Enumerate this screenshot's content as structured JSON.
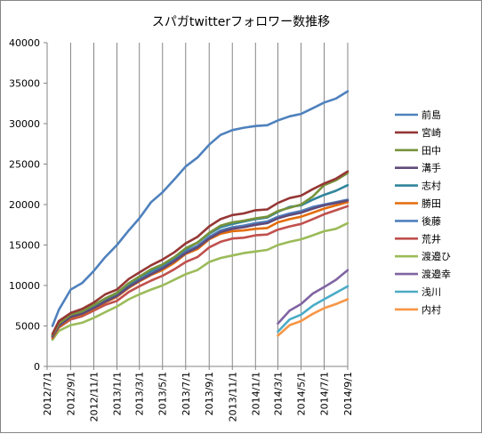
{
  "chart_data": {
    "type": "line",
    "title": "スパガtwitterフォロワー数推移",
    "xlabel": "",
    "ylabel": "",
    "ylim": [
      0,
      40000
    ],
    "yticks": [
      "0",
      "5000",
      "10000",
      "15000",
      "20000",
      "25000",
      "30000",
      "35000",
      "40000"
    ],
    "x_tick_labels": [
      "2012/7/1",
      "2012/9/1",
      "2012/11/1",
      "2013/1/1",
      "2013/3/1",
      "2013/5/1",
      "2013/7/1",
      "2013/9/1",
      "2013/11/1",
      "2014/1/1",
      "2014/3/1",
      "2014/5/1",
      "2014/7/1",
      "2014/9/1"
    ],
    "grid": "vertical",
    "legend_position": "right",
    "series": [
      {
        "name": "前島",
        "color": "#4f81bd",
        "points": [
          [
            "2012/7/15",
            5000
          ],
          [
            "2012/8/1",
            7000
          ],
          [
            "2012/9/1",
            9500
          ],
          [
            "2012/10/1",
            10300
          ],
          [
            "2012/11/1",
            11800
          ],
          [
            "2012/12/1",
            13500
          ],
          [
            "2013/1/1",
            15000
          ],
          [
            "2013/2/1",
            16800
          ],
          [
            "2013/3/1",
            18300
          ],
          [
            "2013/4/1",
            20300
          ],
          [
            "2013/5/1",
            21500
          ],
          [
            "2013/6/1",
            23100
          ],
          [
            "2013/7/1",
            24700
          ],
          [
            "2013/8/1",
            25800
          ],
          [
            "2013/9/1",
            27400
          ],
          [
            "2013/10/1",
            28600
          ],
          [
            "2013/11/1",
            29200
          ],
          [
            "2013/12/1",
            29500
          ],
          [
            "2014/1/1",
            29700
          ],
          [
            "2014/2/1",
            29800
          ],
          [
            "2014/3/1",
            30400
          ],
          [
            "2014/4/1",
            30900
          ],
          [
            "2014/5/1",
            31200
          ],
          [
            "2014/6/1",
            31900
          ],
          [
            "2014/7/1",
            32600
          ],
          [
            "2014/8/1",
            33100
          ],
          [
            "2014/9/1",
            34000
          ]
        ]
      },
      {
        "name": "宮崎",
        "color": "#953735",
        "points": [
          [
            "2012/7/15",
            4000
          ],
          [
            "2012/8/1",
            5600
          ],
          [
            "2012/9/1",
            6600
          ],
          [
            "2012/10/1",
            7100
          ],
          [
            "2012/11/1",
            7900
          ],
          [
            "2012/12/1",
            8900
          ],
          [
            "2013/1/1",
            9500
          ],
          [
            "2013/2/1",
            10800
          ],
          [
            "2013/3/1",
            11600
          ],
          [
            "2013/4/1",
            12500
          ],
          [
            "2013/5/1",
            13200
          ],
          [
            "2013/6/1",
            14100
          ],
          [
            "2013/7/1",
            15200
          ],
          [
            "2013/8/1",
            16000
          ],
          [
            "2013/9/1",
            17300
          ],
          [
            "2013/10/1",
            18200
          ],
          [
            "2013/11/1",
            18700
          ],
          [
            "2013/12/1",
            18900
          ],
          [
            "2014/1/1",
            19300
          ],
          [
            "2014/2/1",
            19400
          ],
          [
            "2014/3/1",
            20200
          ],
          [
            "2014/4/1",
            20800
          ],
          [
            "2014/5/1",
            21100
          ],
          [
            "2014/6/1",
            21900
          ],
          [
            "2014/7/1",
            22600
          ],
          [
            "2014/8/1",
            23200
          ],
          [
            "2014/9/1",
            24100
          ]
        ]
      },
      {
        "name": "田中",
        "color": "#77933c",
        "points": [
          [
            "2012/7/15",
            3900
          ],
          [
            "2012/8/1",
            5300
          ],
          [
            "2012/9/1",
            6400
          ],
          [
            "2012/10/1",
            6800
          ],
          [
            "2012/11/1",
            7600
          ],
          [
            "2012/12/1",
            8400
          ],
          [
            "2013/1/1",
            9100
          ],
          [
            "2013/2/1",
            10300
          ],
          [
            "2013/3/1",
            11100
          ],
          [
            "2013/4/1",
            12000
          ],
          [
            "2013/5/1",
            12600
          ],
          [
            "2013/6/1",
            13500
          ],
          [
            "2013/7/1",
            14600
          ],
          [
            "2013/8/1",
            15300
          ],
          [
            "2013/9/1",
            16500
          ],
          [
            "2013/10/1",
            17400
          ],
          [
            "2013/11/1",
            17800
          ],
          [
            "2013/12/1",
            18000
          ],
          [
            "2014/1/1",
            18300
          ],
          [
            "2014/2/1",
            18500
          ],
          [
            "2014/3/1",
            19200
          ],
          [
            "2014/4/1",
            19600
          ],
          [
            "2014/5/1",
            20000
          ],
          [
            "2014/6/1",
            21000
          ],
          [
            "2014/7/1",
            22400
          ],
          [
            "2014/8/1",
            23000
          ],
          [
            "2014/9/1",
            23900
          ]
        ]
      },
      {
        "name": "溝手",
        "color": "#604a7b",
        "points": [
          [
            "2012/7/15",
            3700
          ],
          [
            "2012/8/1",
            5000
          ],
          [
            "2012/9/1",
            6100
          ],
          [
            "2012/10/1",
            6500
          ],
          [
            "2012/11/1",
            7200
          ],
          [
            "2012/12/1",
            8000
          ],
          [
            "2013/1/1",
            8700
          ],
          [
            "2013/2/1",
            9800
          ],
          [
            "2013/3/1",
            10600
          ],
          [
            "2013/4/1",
            11400
          ],
          [
            "2013/5/1",
            12100
          ],
          [
            "2013/6/1",
            13000
          ],
          [
            "2013/7/1",
            14000
          ],
          [
            "2013/8/1",
            14700
          ],
          [
            "2013/9/1",
            15800
          ],
          [
            "2013/10/1",
            16600
          ],
          [
            "2013/11/1",
            17000
          ],
          [
            "2013/12/1",
            17200
          ],
          [
            "2014/1/1",
            17500
          ],
          [
            "2014/2/1",
            17700
          ],
          [
            "2014/3/1",
            18300
          ],
          [
            "2014/4/1",
            18700
          ],
          [
            "2014/5/1",
            19000
          ],
          [
            "2014/6/1",
            19500
          ],
          [
            "2014/7/1",
            19900
          ],
          [
            "2014/8/1",
            20200
          ],
          [
            "2014/9/1",
            20500
          ]
        ]
      },
      {
        "name": "志村",
        "color": "#31859c",
        "points": [
          [
            "2012/7/15",
            3800
          ],
          [
            "2012/8/1",
            5200
          ],
          [
            "2012/9/1",
            6300
          ],
          [
            "2012/10/1",
            6700
          ],
          [
            "2012/11/1",
            7500
          ],
          [
            "2012/12/1",
            8300
          ],
          [
            "2013/1/1",
            9000
          ],
          [
            "2013/2/1",
            10100
          ],
          [
            "2013/3/1",
            11000
          ],
          [
            "2013/4/1",
            11800
          ],
          [
            "2013/5/1",
            12500
          ],
          [
            "2013/6/1",
            13400
          ],
          [
            "2013/7/1",
            14500
          ],
          [
            "2013/8/1",
            15300
          ],
          [
            "2013/9/1",
            16400
          ],
          [
            "2013/10/1",
            17200
          ],
          [
            "2013/11/1",
            17600
          ],
          [
            "2013/12/1",
            17900
          ],
          [
            "2014/1/1",
            18200
          ],
          [
            "2014/2/1",
            18400
          ],
          [
            "2014/3/1",
            19100
          ],
          [
            "2014/4/1",
            19700
          ],
          [
            "2014/5/1",
            19900
          ],
          [
            "2014/6/1",
            20600
          ],
          [
            "2014/7/1",
            21200
          ],
          [
            "2014/8/1",
            21700
          ],
          [
            "2014/9/1",
            22400
          ]
        ]
      },
      {
        "name": "勝田",
        "color": "#e46c0a",
        "points": [
          [
            "2012/7/15",
            3600
          ],
          [
            "2012/8/1",
            4900
          ],
          [
            "2012/9/1",
            6000
          ],
          [
            "2012/10/1",
            6400
          ],
          [
            "2012/11/1",
            7100
          ],
          [
            "2012/12/1",
            7900
          ],
          [
            "2013/1/1",
            8600
          ],
          [
            "2013/2/1",
            9700
          ],
          [
            "2013/3/1",
            10500
          ],
          [
            "2013/4/1",
            11300
          ],
          [
            "2013/5/1",
            11900
          ],
          [
            "2013/6/1",
            12800
          ],
          [
            "2013/7/1",
            13900
          ],
          [
            "2013/8/1",
            14500
          ],
          [
            "2013/9/1",
            15700
          ],
          [
            "2013/10/1",
            16400
          ],
          [
            "2013/11/1",
            16700
          ],
          [
            "2013/12/1",
            16800
          ],
          [
            "2014/1/1",
            17000
          ],
          [
            "2014/2/1",
            17100
          ],
          [
            "2014/3/1",
            17800
          ],
          [
            "2014/4/1",
            18200
          ],
          [
            "2014/5/1",
            18500
          ],
          [
            "2014/6/1",
            19000
          ],
          [
            "2014/7/1",
            19500
          ],
          [
            "2014/8/1",
            19900
          ],
          [
            "2014/9/1",
            20300
          ]
        ]
      },
      {
        "name": "後藤",
        "color": "#4f81bd",
        "points": [
          [
            "2012/7/15",
            3750
          ],
          [
            "2012/8/1",
            5100
          ],
          [
            "2012/9/1",
            6200
          ],
          [
            "2012/10/1",
            6600
          ],
          [
            "2012/11/1",
            7300
          ],
          [
            "2012/12/1",
            8100
          ],
          [
            "2013/1/1",
            8800
          ],
          [
            "2013/2/1",
            9900
          ],
          [
            "2013/3/1",
            10700
          ],
          [
            "2013/4/1",
            11500
          ],
          [
            "2013/5/1",
            12200
          ],
          [
            "2013/6/1",
            13100
          ],
          [
            "2013/7/1",
            14200
          ],
          [
            "2013/8/1",
            14900
          ],
          [
            "2013/9/1",
            16000
          ],
          [
            "2013/10/1",
            16800
          ],
          [
            "2013/11/1",
            17200
          ],
          [
            "2013/12/1",
            17400
          ],
          [
            "2014/1/1",
            17700
          ],
          [
            "2014/2/1",
            17900
          ],
          [
            "2014/3/1",
            18500
          ],
          [
            "2014/4/1",
            18900
          ],
          [
            "2014/5/1",
            19200
          ],
          [
            "2014/6/1",
            19700
          ],
          [
            "2014/7/1",
            20000
          ],
          [
            "2014/8/1",
            20300
          ],
          [
            "2014/9/1",
            20600
          ]
        ]
      },
      {
        "name": "荒井",
        "color": "#c0504d",
        "points": [
          [
            "2012/7/15",
            3500
          ],
          [
            "2012/8/1",
            4800
          ],
          [
            "2012/9/1",
            5800
          ],
          [
            "2012/10/1",
            6200
          ],
          [
            "2012/11/1",
            6900
          ],
          [
            "2012/12/1",
            7600
          ],
          [
            "2013/1/1",
            8100
          ],
          [
            "2013/2/1",
            9200
          ],
          [
            "2013/3/1",
            9900
          ],
          [
            "2013/4/1",
            10600
          ],
          [
            "2013/5/1",
            11200
          ],
          [
            "2013/6/1",
            12000
          ],
          [
            "2013/7/1",
            12900
          ],
          [
            "2013/8/1",
            13500
          ],
          [
            "2013/9/1",
            14700
          ],
          [
            "2013/10/1",
            15400
          ],
          [
            "2013/11/1",
            15800
          ],
          [
            "2013/12/1",
            15900
          ],
          [
            "2014/1/1",
            16200
          ],
          [
            "2014/2/1",
            16300
          ],
          [
            "2014/3/1",
            16900
          ],
          [
            "2014/4/1",
            17300
          ],
          [
            "2014/5/1",
            17600
          ],
          [
            "2014/6/1",
            18200
          ],
          [
            "2014/7/1",
            18800
          ],
          [
            "2014/8/1",
            19300
          ],
          [
            "2014/9/1",
            19800
          ]
        ]
      },
      {
        "name": "渡邉ひ",
        "color": "#9bbb59",
        "points": [
          [
            "2012/7/15",
            3300
          ],
          [
            "2012/8/1",
            4400
          ],
          [
            "2012/9/1",
            5100
          ],
          [
            "2012/10/1",
            5400
          ],
          [
            "2012/11/1",
            6000
          ],
          [
            "2012/12/1",
            6700
          ],
          [
            "2013/1/1",
            7400
          ],
          [
            "2013/2/1",
            8300
          ],
          [
            "2013/3/1",
            8900
          ],
          [
            "2013/4/1",
            9500
          ],
          [
            "2013/5/1",
            10000
          ],
          [
            "2013/6/1",
            10700
          ],
          [
            "2013/7/1",
            11400
          ],
          [
            "2013/8/1",
            11900
          ],
          [
            "2013/9/1",
            12900
          ],
          [
            "2013/10/1",
            13400
          ],
          [
            "2013/11/1",
            13700
          ],
          [
            "2013/12/1",
            14000
          ],
          [
            "2014/1/1",
            14200
          ],
          [
            "2014/2/1",
            14400
          ],
          [
            "2014/3/1",
            15000
          ],
          [
            "2014/4/1",
            15400
          ],
          [
            "2014/5/1",
            15700
          ],
          [
            "2014/6/1",
            16200
          ],
          [
            "2014/7/1",
            16700
          ],
          [
            "2014/8/1",
            17000
          ],
          [
            "2014/9/1",
            17700
          ]
        ]
      },
      {
        "name": "渡邉幸",
        "color": "#8064a2",
        "points": [
          [
            "2014/3/1",
            5300
          ],
          [
            "2014/4/1",
            6900
          ],
          [
            "2014/5/1",
            7700
          ],
          [
            "2014/6/1",
            9000
          ],
          [
            "2014/7/1",
            9800
          ],
          [
            "2014/8/1",
            10700
          ],
          [
            "2014/9/1",
            11900
          ]
        ]
      },
      {
        "name": "浅川",
        "color": "#4bacc6",
        "points": [
          [
            "2014/3/1",
            4300
          ],
          [
            "2014/4/1",
            5800
          ],
          [
            "2014/5/1",
            6400
          ],
          [
            "2014/6/1",
            7500
          ],
          [
            "2014/7/1",
            8300
          ],
          [
            "2014/8/1",
            9100
          ],
          [
            "2014/9/1",
            9900
          ]
        ]
      },
      {
        "name": "内村",
        "color": "#f79646",
        "points": [
          [
            "2014/3/1",
            3800
          ],
          [
            "2014/4/1",
            5100
          ],
          [
            "2014/5/1",
            5600
          ],
          [
            "2014/6/1",
            6500
          ],
          [
            "2014/7/1",
            7200
          ],
          [
            "2014/8/1",
            7700
          ],
          [
            "2014/9/1",
            8300
          ]
        ]
      }
    ]
  }
}
